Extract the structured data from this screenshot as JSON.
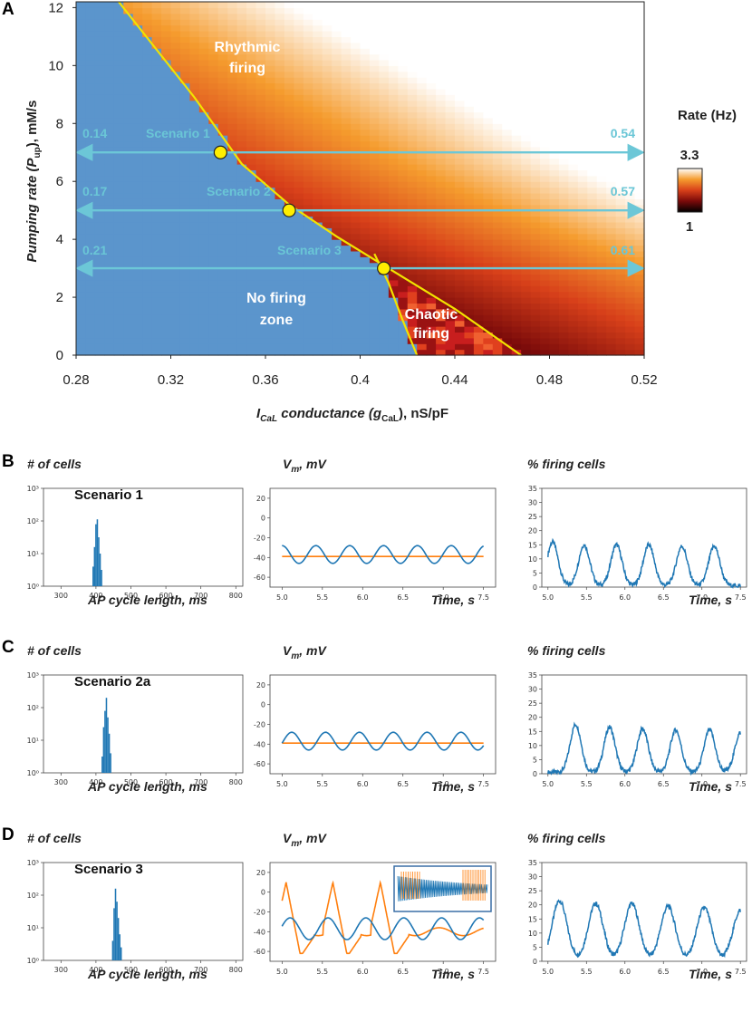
{
  "panel_letters": {
    "a": "A",
    "b": "B",
    "c": "C",
    "d": "D"
  },
  "colors": {
    "no_firing": "#5b95cc",
    "boundary": "#f2e300",
    "arrow": "#6cc7d7",
    "marker": "#ffee00",
    "series_blue": "#1f77b4",
    "series_orange": "#ff7f0e"
  },
  "chart_data": [
    {
      "id": "A",
      "type": "heatmap",
      "xlabel_main": "I",
      "xlabel_sub": "CaL",
      "xlabel_italic": " conductance (g",
      "xlabel_g_sub": "CaL",
      "xlabel_tail": "), nS/pF",
      "ylabel_italic": "Pumping rate (P",
      "ylabel_sub": "up",
      "ylabel_tail": "), mM/s",
      "xlim": [
        0.28,
        0.52
      ],
      "ylim": [
        0,
        12.2
      ],
      "xticks": [
        "0.28",
        "0.32",
        "0.36",
        "0.4",
        "0.44",
        "0.48",
        "0.52"
      ],
      "xtick_values": [
        0.28,
        0.32,
        0.36,
        0.4,
        0.44,
        0.48,
        0.52
      ],
      "yticks": [
        "0",
        "2",
        "4",
        "6",
        "8",
        "10",
        "12"
      ],
      "ytick_values": [
        0,
        2,
        4,
        6,
        8,
        10,
        12
      ],
      "regions": {
        "rhythmic_line1": "Rhythmic",
        "rhythmic_line2": "firing",
        "nofire_line1": "No firing",
        "nofire_line2": "zone",
        "chaotic_line1": "Chaotic",
        "chaotic_line2": "firing"
      },
      "boundary_upper": [
        [
          0.298,
          12.2
        ],
        [
          0.33,
          8.9
        ],
        [
          0.35,
          6.6
        ],
        [
          0.37,
          5.2
        ],
        [
          0.39,
          4.1
        ],
        [
          0.41,
          3.1
        ],
        [
          0.44,
          1.6
        ],
        [
          0.468,
          0
        ]
      ],
      "boundary_lower": [
        [
          0.406,
          3.5
        ],
        [
          0.412,
          2.5
        ],
        [
          0.418,
          1.2
        ],
        [
          0.424,
          0
        ]
      ],
      "colorbar": {
        "title": "Rate (Hz)",
        "max": "3.3",
        "min": "1"
      },
      "scenarios": [
        {
          "name": "Scenario 1",
          "p_up": 7,
          "g_cal": 0.341,
          "left_value": "0.14",
          "right_value": "0.54"
        },
        {
          "name": "Scenario 2",
          "p_up": 5,
          "g_cal": 0.37,
          "left_value": "0.17",
          "right_value": "0.57"
        },
        {
          "name": "Scenario 3",
          "p_up": 3,
          "g_cal": 0.41,
          "left_value": "0.21",
          "right_value": "0.61"
        }
      ]
    },
    {
      "id": "B",
      "scenario_label": "Scenario 1",
      "hist": {
        "type": "bar",
        "title": "# of cells",
        "xlabel": "AP cycle length, ms",
        "xticks": [
          "300",
          "400",
          "500",
          "600",
          "700",
          "800"
        ],
        "yticks": [
          "10⁰",
          "10¹",
          "10²",
          "10³"
        ],
        "center": 405,
        "bins": [
          [
            392,
            0.6
          ],
          [
            396,
            1.2
          ],
          [
            400,
            1.9
          ],
          [
            404,
            2.05
          ],
          [
            408,
            1.5
          ],
          [
            412,
            1.0
          ],
          [
            416,
            0.5
          ]
        ]
      },
      "vm": {
        "type": "line",
        "title": "V",
        "title_sub": "m",
        "title_tail": ", mV",
        "xlabel": "Time, s",
        "xticks": [
          "5.0",
          "5.5",
          "6.0",
          "6.5",
          "7.0",
          "7.5"
        ],
        "yticks": [
          "20",
          "0",
          "-20",
          "-40",
          "-60"
        ],
        "ylim": [
          -70,
          30
        ],
        "blue": {
          "mean": -37,
          "amp": 9,
          "period": 0.42,
          "phase": 0.0
        },
        "orange": {
          "level": -39
        }
      },
      "pct": {
        "type": "line",
        "title": "% firing cells",
        "xlabel": "Time, s",
        "xticks": [
          "5.0",
          "5.5",
          "6.0",
          "6.5",
          "7.0",
          "7.5"
        ],
        "yticks": [
          "35",
          "30",
          "25",
          "20",
          "15",
          "10",
          "5",
          "0"
        ],
        "ylim": [
          0,
          35
        ],
        "peaks": [
          5.06,
          5.47,
          5.89,
          6.31,
          6.74,
          7.16
        ],
        "peak_values": [
          15.5,
          14.5,
          14.5,
          14.5,
          14.0,
          14.0
        ],
        "width": 0.12
      }
    },
    {
      "id": "C",
      "scenario_label": "Scenario 2a",
      "hist": {
        "type": "bar",
        "title": "# of cells",
        "xlabel": "AP cycle length, ms",
        "xticks": [
          "300",
          "400",
          "500",
          "600",
          "700",
          "800"
        ],
        "yticks": [
          "10⁰",
          "10¹",
          "10²",
          "10³"
        ],
        "center": 432,
        "bins": [
          [
            418,
            0.5
          ],
          [
            422,
            1.4
          ],
          [
            426,
            1.9
          ],
          [
            430,
            2.3
          ],
          [
            434,
            1.7
          ],
          [
            438,
            1.2
          ],
          [
            442,
            0.6
          ]
        ]
      },
      "vm": {
        "type": "line",
        "title": "V",
        "title_sub": "m",
        "title_tail": ", mV",
        "xlabel": "Time, s",
        "xticks": [
          "5.0",
          "5.5",
          "6.0",
          "6.5",
          "7.0",
          "7.5"
        ],
        "yticks": [
          "20",
          "0",
          "-20",
          "-40",
          "-60"
        ],
        "ylim": [
          -70,
          30
        ],
        "blue": {
          "mean": -37,
          "amp": 9,
          "period": 0.42,
          "phase": 0.12
        },
        "orange": {
          "level": -39
        }
      },
      "pct": {
        "type": "line",
        "title": "% firing cells",
        "xlabel": "Time, s",
        "xticks": [
          "5.0",
          "5.5",
          "6.0",
          "6.5",
          "7.0",
          "7.5"
        ],
        "yticks": [
          "35",
          "30",
          "25",
          "20",
          "15",
          "10",
          "5",
          "0"
        ],
        "ylim": [
          0,
          35
        ],
        "peaks": [
          5.36,
          5.8,
          6.23,
          6.66,
          7.1,
          7.5
        ],
        "peak_values": [
          17,
          16,
          15.5,
          15,
          15,
          14
        ],
        "width": 0.12
      }
    },
    {
      "id": "D",
      "scenario_label": "Scenario 3",
      "hist": {
        "type": "bar",
        "title": "# of cells",
        "xlabel": "AP cycle length, ms",
        "xticks": [
          "300",
          "400",
          "500",
          "600",
          "700",
          "800"
        ],
        "yticks": [
          "10⁰",
          "10¹",
          "10²",
          "10³"
        ],
        "center": 458,
        "bins": [
          [
            448,
            0.6
          ],
          [
            452,
            1.6
          ],
          [
            456,
            2.2
          ],
          [
            460,
            1.8
          ],
          [
            464,
            1.3
          ],
          [
            468,
            0.8
          ],
          [
            472,
            0.4
          ]
        ]
      },
      "vm": {
        "type": "line",
        "title": "V",
        "title_sub": "m",
        "title_tail": ", mV",
        "xlabel": "Time, s",
        "xticks": [
          "5.0",
          "5.5",
          "6.0",
          "6.5",
          "7.0",
          "7.5"
        ],
        "yticks": [
          "20",
          "0",
          "-20",
          "-40",
          "-60"
        ],
        "ylim": [
          -70,
          30
        ],
        "blue": {
          "mean": -37,
          "amp": 11,
          "period": 0.47,
          "phase": 0.1
        },
        "orange_spikes": [
          5.05,
          5.63,
          6.22
        ],
        "has_inset": true
      },
      "pct": {
        "type": "line",
        "title": "% firing cells",
        "xlabel": "Time, s",
        "xticks": [
          "5.0",
          "5.5",
          "6.0",
          "6.5",
          "7.0",
          "7.5"
        ],
        "yticks": [
          "35",
          "30",
          "25",
          "20",
          "15",
          "10",
          "5",
          "0"
        ],
        "ylim": [
          0,
          35
        ],
        "peaks": [
          5.15,
          5.62,
          6.09,
          6.56,
          7.03,
          7.5
        ],
        "peak_values": [
          21,
          20,
          20,
          19,
          18.5,
          17.5
        ],
        "width": 0.16
      }
    }
  ]
}
